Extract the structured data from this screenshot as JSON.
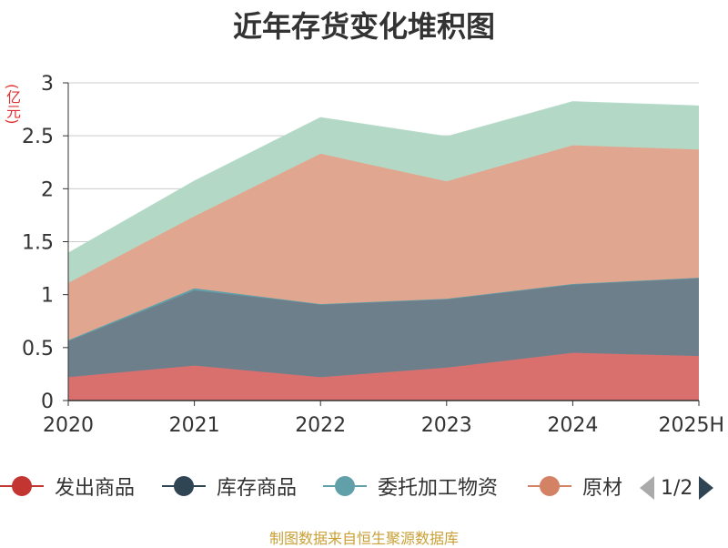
{
  "chart_data": {
    "type": "area",
    "title": "近年存货变化堆积图",
    "ylabel": "(亿元)",
    "categories": [
      "2020",
      "2021",
      "2022",
      "2023",
      "2024",
      "2025H"
    ],
    "ylim": [
      0,
      3
    ],
    "yticks": [
      "0",
      "0.5",
      "1",
      "1.5",
      "2",
      "2.5",
      "3"
    ],
    "stacked": true,
    "grid": true,
    "series": [
      {
        "name": "发出商品",
        "color": "#d9706e",
        "legend_color": "#c23531",
        "values": [
          0.22,
          0.33,
          0.22,
          0.31,
          0.45,
          0.42
        ]
      },
      {
        "name": "库存商品",
        "color": "#6e7f8c",
        "legend_color": "#2f4554",
        "values": [
          0.34,
          0.71,
          0.69,
          0.65,
          0.65,
          0.74
        ]
      },
      {
        "name": "委托加工物资",
        "color": "#61a0a8",
        "legend_color": "#61a0a8",
        "values": [
          0.01,
          0.02,
          0.0,
          0.0,
          0.0,
          0.0
        ]
      },
      {
        "name": "原材料",
        "color": "#e1a68f",
        "legend_color": "#d48265",
        "values": [
          0.54,
          0.68,
          1.42,
          1.11,
          1.31,
          1.21
        ]
      },
      {
        "name": "",
        "color": "#b3d8c6",
        "legend_color": "#91c7ae",
        "values": [
          0.28,
          0.33,
          0.34,
          0.42,
          0.41,
          0.41
        ]
      }
    ],
    "legend": {
      "position": "bottom",
      "page": "1/2"
    }
  },
  "source": "制图数据来自恒生聚源数据库",
  "icons": {
    "prev": "chevron-left-icon",
    "next": "chevron-right-icon"
  }
}
